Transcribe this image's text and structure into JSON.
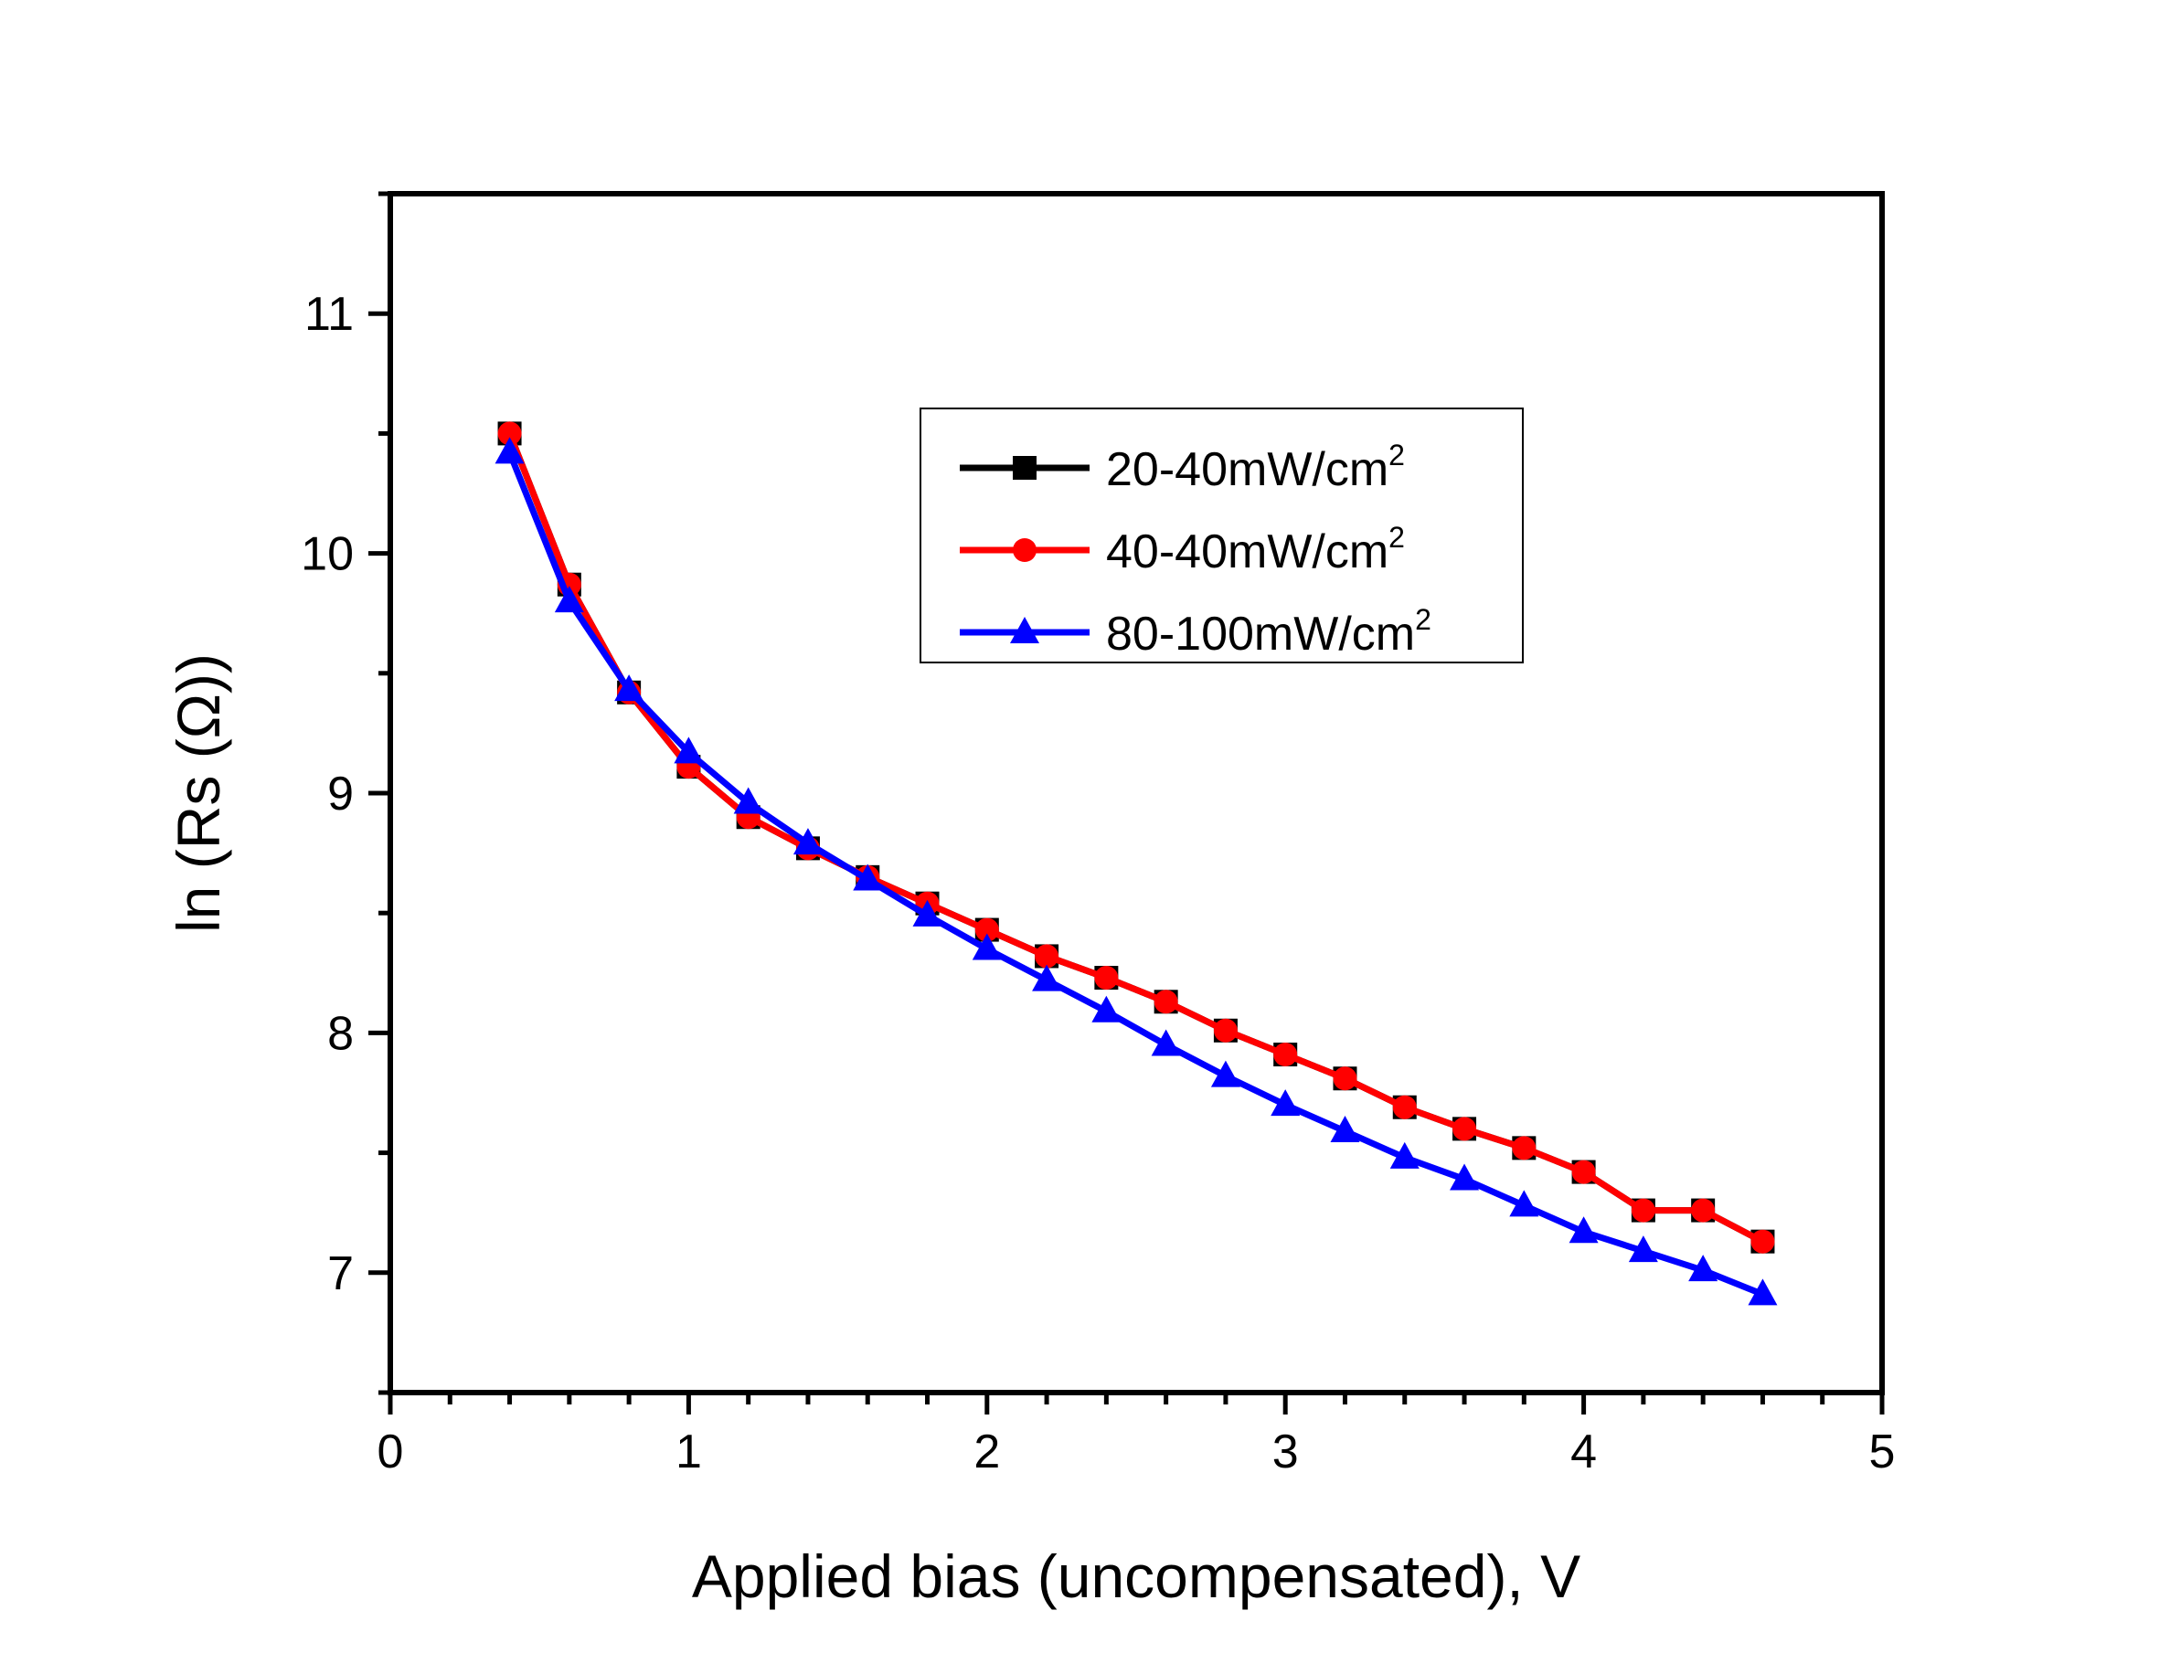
{
  "chart_data": {
    "type": "line",
    "xlabel": "Applied bias (uncompensated), V",
    "ylabel": "ln (Rs (Ω))",
    "xlim": [
      0,
      5
    ],
    "ylim": [
      6.5,
      11.5
    ],
    "x_ticks": [
      "0",
      "1",
      "2",
      "3",
      "4",
      "5"
    ],
    "y_ticks": [
      "7",
      "8",
      "9",
      "10",
      "11"
    ],
    "grid": false,
    "legend_position": "top-right",
    "x": [
      0.4,
      0.6,
      0.8,
      1.0,
      1.2,
      1.4,
      1.6,
      1.8,
      2.0,
      2.2,
      2.4,
      2.6,
      2.8,
      3.0,
      3.2,
      3.4,
      3.6,
      3.8,
      4.0,
      4.2,
      4.4,
      4.6
    ],
    "series": [
      {
        "name": "20-40mW/cm",
        "name_sup": "2",
        "color": "#000000",
        "marker": "square",
        "values": [
          10.5,
          9.87,
          9.42,
          9.11,
          8.9,
          8.77,
          8.65,
          8.54,
          8.43,
          8.32,
          8.23,
          8.13,
          8.01,
          7.91,
          7.81,
          7.69,
          7.6,
          7.52,
          7.42,
          7.26,
          7.26,
          7.13
        ]
      },
      {
        "name": "40-40mW/cm",
        "name_sup": "2",
        "color": "#ff0000",
        "marker": "circle",
        "values": [
          10.5,
          9.87,
          9.42,
          9.11,
          8.9,
          8.77,
          8.65,
          8.54,
          8.43,
          8.32,
          8.23,
          8.13,
          8.01,
          7.91,
          7.81,
          7.69,
          7.6,
          7.52,
          7.42,
          7.26,
          7.26,
          7.13
        ]
      },
      {
        "name": "80-100mW/cm",
        "name_sup": "2",
        "color": "#0000ff",
        "marker": "triangle",
        "values": [
          10.42,
          9.8,
          9.43,
          9.17,
          8.96,
          8.79,
          8.64,
          8.49,
          8.35,
          8.22,
          8.09,
          7.95,
          7.82,
          7.7,
          7.59,
          7.48,
          7.39,
          7.28,
          7.17,
          7.09,
          7.01,
          6.91
        ]
      }
    ]
  }
}
